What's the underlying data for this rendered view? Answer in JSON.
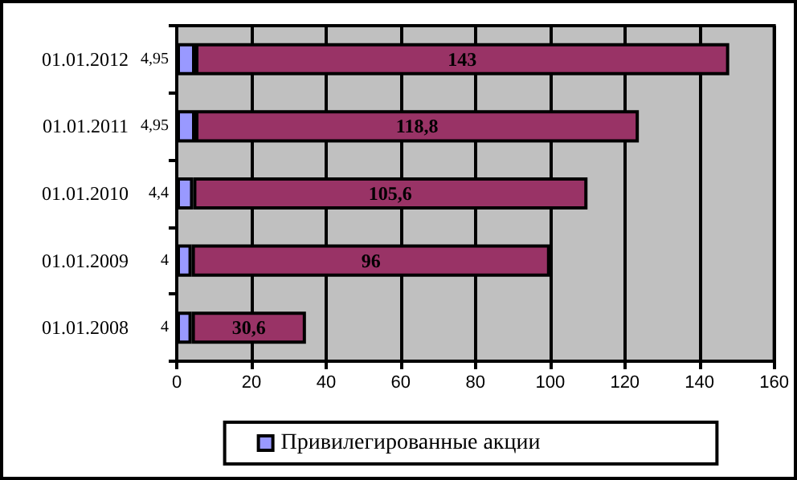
{
  "chart_data": {
    "type": "bar",
    "orientation": "horizontal",
    "stacked": true,
    "categories": [
      "01.01.2012",
      "01.01.2011",
      "01.01.2010",
      "01.01.2009",
      "01.01.2008"
    ],
    "series": [
      {
        "name": "Привилегированные акции",
        "color": "#9999ff",
        "values": [
          4.95,
          4.95,
          4.4,
          4,
          4
        ],
        "value_labels": [
          "4,95",
          "4,95",
          "4,4",
          "4",
          "4"
        ]
      },
      {
        "color": "#993366",
        "values": [
          143,
          118.8,
          105.6,
          96,
          30.6
        ],
        "value_labels": [
          "143",
          "118,8",
          "105,6",
          "96",
          "30,6"
        ]
      }
    ],
    "xlim": [
      0,
      160
    ],
    "xticks": [
      0,
      20,
      40,
      60,
      80,
      100,
      120,
      140,
      160
    ],
    "grid": "x",
    "legend": "bottom"
  }
}
